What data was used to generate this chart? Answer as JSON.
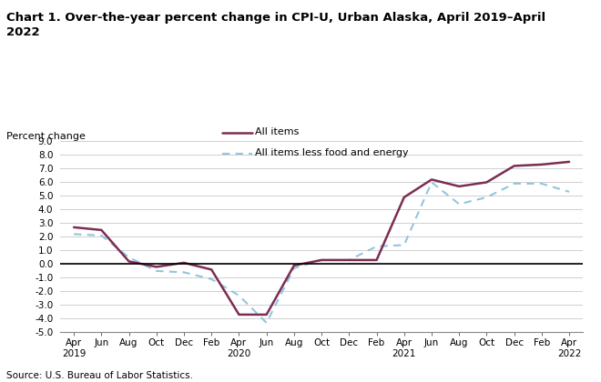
{
  "title": "Chart 1. Over-the-year percent change in CPI-U, Urban Alaska, April 2019–April\n2022",
  "ylabel": "Percent change",
  "source": "Source: U.S. Bureau of Labor Statistics.",
  "xlabels": [
    "Apr\n2019",
    "Jun",
    "Aug",
    "Oct",
    "Dec",
    "Feb",
    "Apr\n2020",
    "Jun",
    "Aug",
    "Oct",
    "Dec",
    "Feb",
    "Apr\n2021",
    "Jun",
    "Aug",
    "Oct",
    "Dec",
    "Feb",
    "Apr\n2022"
  ],
  "all_items": [
    2.7,
    2.5,
    0.2,
    -0.2,
    0.1,
    -0.4,
    -3.7,
    -3.7,
    -0.1,
    0.3,
    0.3,
    0.3,
    4.9,
    6.2,
    5.7,
    6.0,
    7.2,
    7.3,
    7.5
  ],
  "all_items_less": [
    2.2,
    2.1,
    0.5,
    -0.5,
    -0.6,
    -1.1,
    -2.3,
    -4.3,
    -0.3,
    0.3,
    0.3,
    1.3,
    1.4,
    6.0,
    4.4,
    4.9,
    5.9,
    5.9,
    5.3
  ],
  "ylim": [
    -5.0,
    9.0
  ],
  "yticks": [
    -5.0,
    -4.0,
    -3.0,
    -2.0,
    -1.0,
    0.0,
    1.0,
    2.0,
    3.0,
    4.0,
    5.0,
    6.0,
    7.0,
    8.0,
    9.0
  ],
  "color_all_items": "#7B2D52",
  "color_less": "#92C5DE",
  "legend_labels": [
    "All items",
    "All items less food and energy"
  ],
  "bg_color": "#ffffff",
  "grid_color": "#c8c8c8"
}
